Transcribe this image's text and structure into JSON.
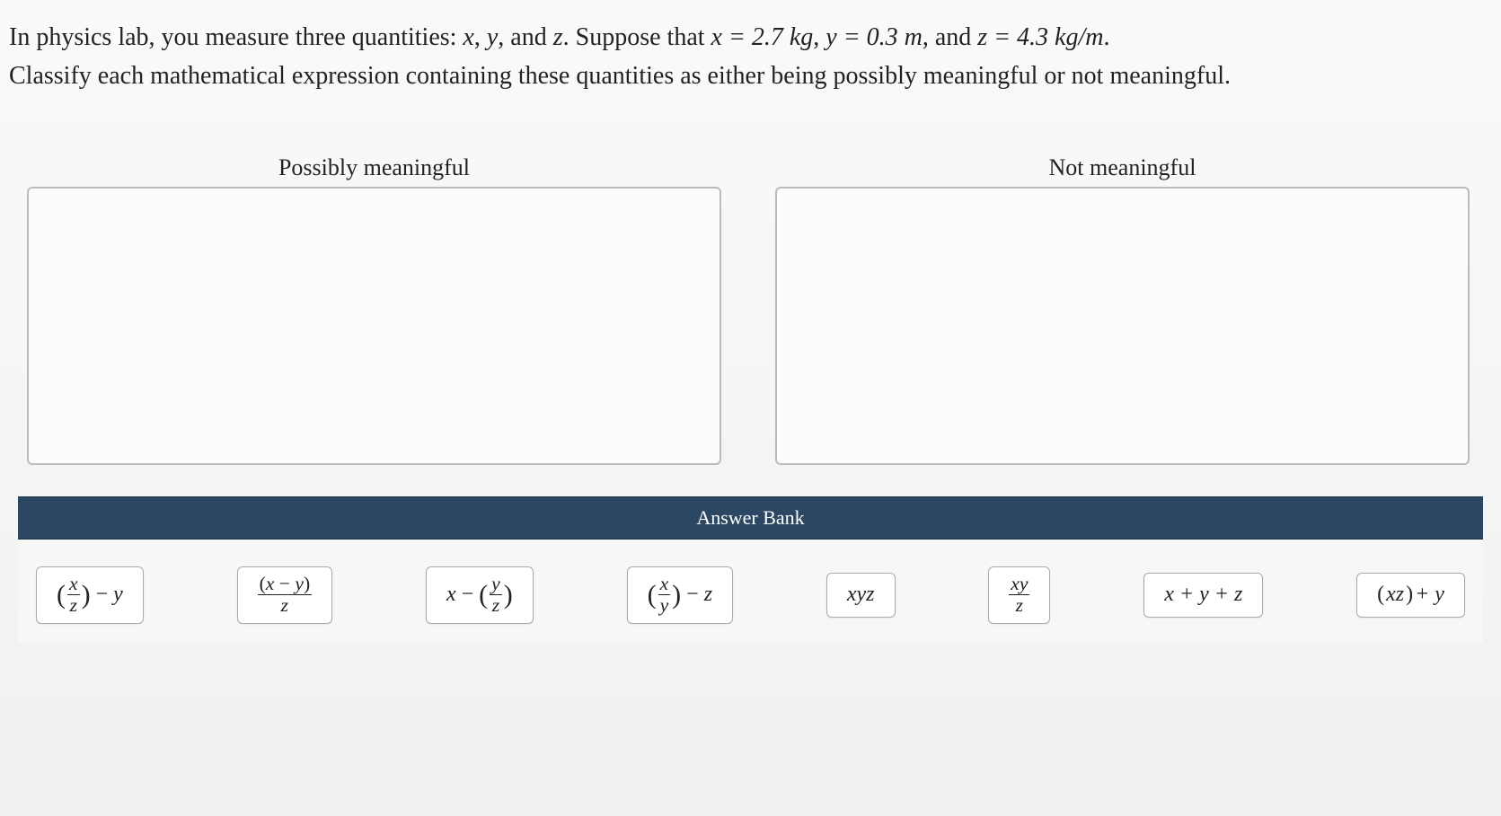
{
  "question": {
    "line1_prefix": "In physics lab, you measure three quantities: ",
    "vars_text": "x, y, and z",
    "suppose": ". Suppose that ",
    "x_val": "x = 2.7 kg",
    "y_val": "y = 0.3 m",
    "z_val": "z = 4.3 kg/m",
    "line1_suffix": ".",
    "line2": "Classify each mathematical expression containing these quantities as either being possibly meaningful or not meaningful."
  },
  "bins": {
    "left": {
      "title": "Possibly meaningful"
    },
    "right": {
      "title": "Not meaningful"
    }
  },
  "answer_bank": {
    "header": "Answer Bank",
    "items": [
      {
        "id": "exp1",
        "type": "paren_frac_minus",
        "num": "x",
        "den": "z",
        "after": "y"
      },
      {
        "id": "exp2",
        "type": "frac_paren_num",
        "num": "(x − y)",
        "den": "z"
      },
      {
        "id": "exp3",
        "type": "x_minus_paren_frac",
        "before": "x",
        "num": "y",
        "den": "z"
      },
      {
        "id": "exp4",
        "type": "paren_frac_minus",
        "num": "x",
        "den": "y",
        "after": "z"
      },
      {
        "id": "exp5",
        "type": "plain",
        "text": "xyz"
      },
      {
        "id": "exp6",
        "type": "frac",
        "num": "xy",
        "den": "z"
      },
      {
        "id": "exp7",
        "type": "plain",
        "text": "x + y + z"
      },
      {
        "id": "exp8",
        "type": "plain_paren",
        "paren": "xz",
        "after": " + y"
      }
    ]
  },
  "styling": {
    "page_bg": "#f5f5f5",
    "text_color": "#222222",
    "bin_border": "#bbbbbb",
    "tile_border": "#aaaaaa",
    "tile_bg": "#ffffff",
    "bank_header_bg": "#2b4763",
    "bank_header_color": "#ffffff",
    "question_fontsize": 28,
    "bin_title_fontsize": 26,
    "tile_fontsize": 24,
    "dropzone_height": 310,
    "dropzone_radius": 6,
    "tile_radius": 6
  }
}
